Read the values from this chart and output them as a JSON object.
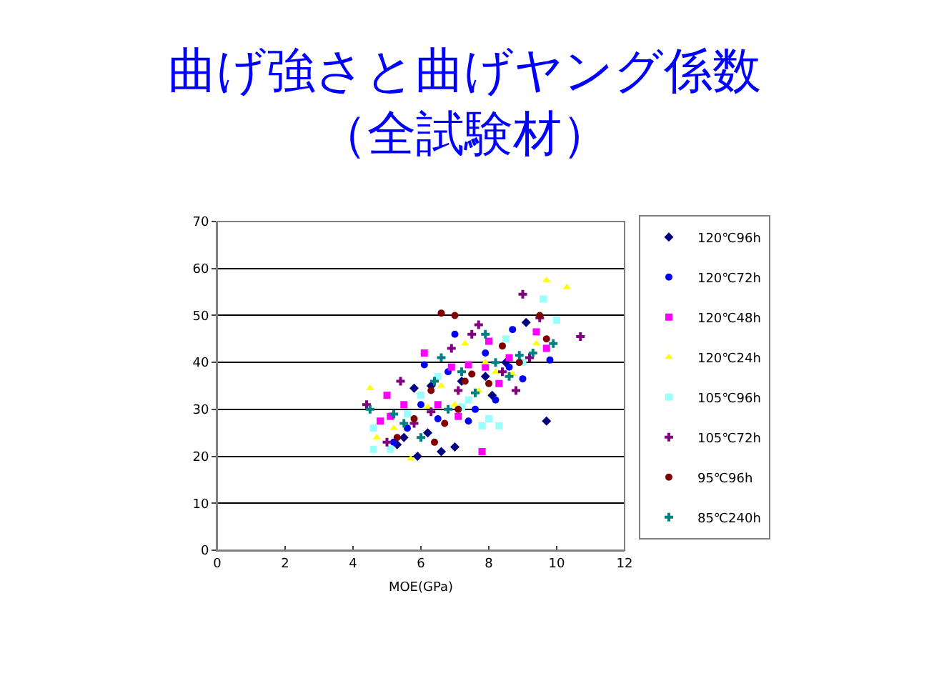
{
  "chart_data": {
    "type": "scatter",
    "title": "曲げ強さと曲げヤング係数（全試験材）",
    "xlabel": "MOE(GPa)",
    "xlim": [
      0,
      12
    ],
    "ylim": [
      0,
      70
    ],
    "xticks": [
      0,
      2,
      4,
      6,
      8,
      10,
      12
    ],
    "yticks": [
      0,
      10,
      20,
      30,
      40,
      50,
      60,
      70
    ],
    "grid": "y",
    "legend": "right",
    "series": [
      {
        "name": "120℃96h",
        "color": "#000080",
        "marker": "diamond",
        "x": [
          5.5,
          5.9,
          6.6,
          7.0,
          9.7,
          9.1,
          8.1,
          6.2,
          5.3,
          7.2,
          8.5,
          5.8,
          7.9,
          6.3
        ],
        "values": [
          24,
          20,
          21,
          22,
          27.5,
          48.5,
          33,
          25,
          22.5,
          36,
          40,
          34.5,
          37,
          35
        ]
      },
      {
        "name": "120℃72h",
        "color": "#0000ff",
        "marker": "circle",
        "x": [
          5.6,
          6.0,
          6.5,
          7.0,
          7.4,
          8.7,
          9.8,
          8.6,
          7.6,
          6.8,
          5.2,
          8.2,
          9.0,
          6.1,
          7.9
        ],
        "values": [
          26,
          31,
          28,
          46,
          27.5,
          47,
          40.5,
          39,
          30,
          38,
          23,
          32,
          36.5,
          39.5,
          42
        ]
      },
      {
        "name": "120℃48h",
        "color": "#ff00ff",
        "marker": "square",
        "x": [
          5.0,
          4.8,
          5.1,
          6.1,
          7.8,
          7.9,
          7.4,
          8.0,
          9.4,
          9.7,
          6.5,
          7.1,
          8.6,
          5.5,
          6.9,
          8.3
        ],
        "values": [
          33,
          27.5,
          28.5,
          42,
          21,
          39,
          39.5,
          44.5,
          46.5,
          43,
          31,
          28.5,
          41,
          31,
          39,
          35.5
        ]
      },
      {
        "name": "120℃24h",
        "color": "#ffff00",
        "marker": "triangle",
        "x": [
          4.5,
          5.7,
          9.7,
          10.3,
          9.4,
          8.7,
          7.9,
          7.0,
          6.2,
          5.2,
          6.6,
          7.7,
          4.7,
          8.2,
          7.3
        ],
        "values": [
          34.5,
          19.5,
          57.5,
          56,
          44,
          37.5,
          40,
          31,
          30.5,
          26,
          35,
          34,
          24,
          38,
          44
        ]
      },
      {
        "name": "105℃96h",
        "color": "#99ffff",
        "marker": "square",
        "x": [
          4.6,
          5.1,
          8.3,
          10.0,
          9.6,
          7.8,
          8.0,
          7.4,
          6.5,
          5.6,
          9.0,
          7.2,
          4.6,
          8.5,
          6.0
        ],
        "values": [
          21.5,
          21.5,
          26.5,
          49,
          53.5,
          26.5,
          28,
          32,
          37,
          29,
          40,
          30.5,
          26,
          45,
          33
        ]
      },
      {
        "name": "105℃72h",
        "color": "#800080",
        "marker": "cross",
        "x": [
          4.4,
          5.4,
          9.0,
          10.7,
          9.5,
          8.8,
          7.5,
          6.3,
          5.8,
          7.1,
          8.4,
          6.9,
          5.0,
          7.7,
          9.2
        ],
        "values": [
          31,
          36,
          54.5,
          45.5,
          49.5,
          34,
          46,
          29.5,
          27,
          34,
          38,
          43,
          23,
          48,
          41
        ]
      },
      {
        "name": "95℃96h",
        "color": "#800000",
        "marker": "circle",
        "x": [
          6.6,
          7.0,
          9.7,
          9.5,
          8.0,
          7.5,
          6.3,
          5.8,
          5.3,
          6.4,
          7.1,
          8.4,
          7.3,
          6.7,
          8.9
        ],
        "values": [
          50.5,
          50,
          45,
          50,
          35.5,
          37.5,
          34,
          28,
          24,
          23,
          30,
          43.5,
          36,
          27,
          40
        ]
      },
      {
        "name": "85℃240h",
        "color": "#008080",
        "marker": "cross",
        "x": [
          4.5,
          5.2,
          6.0,
          6.8,
          7.6,
          8.2,
          8.9,
          9.3,
          7.2,
          6.4,
          5.5,
          8.6,
          7.9,
          6.6,
          9.9
        ],
        "values": [
          30,
          29,
          24,
          30,
          33.5,
          40,
          41.5,
          42,
          38,
          36,
          27,
          37,
          46,
          41,
          44
        ]
      }
    ]
  }
}
